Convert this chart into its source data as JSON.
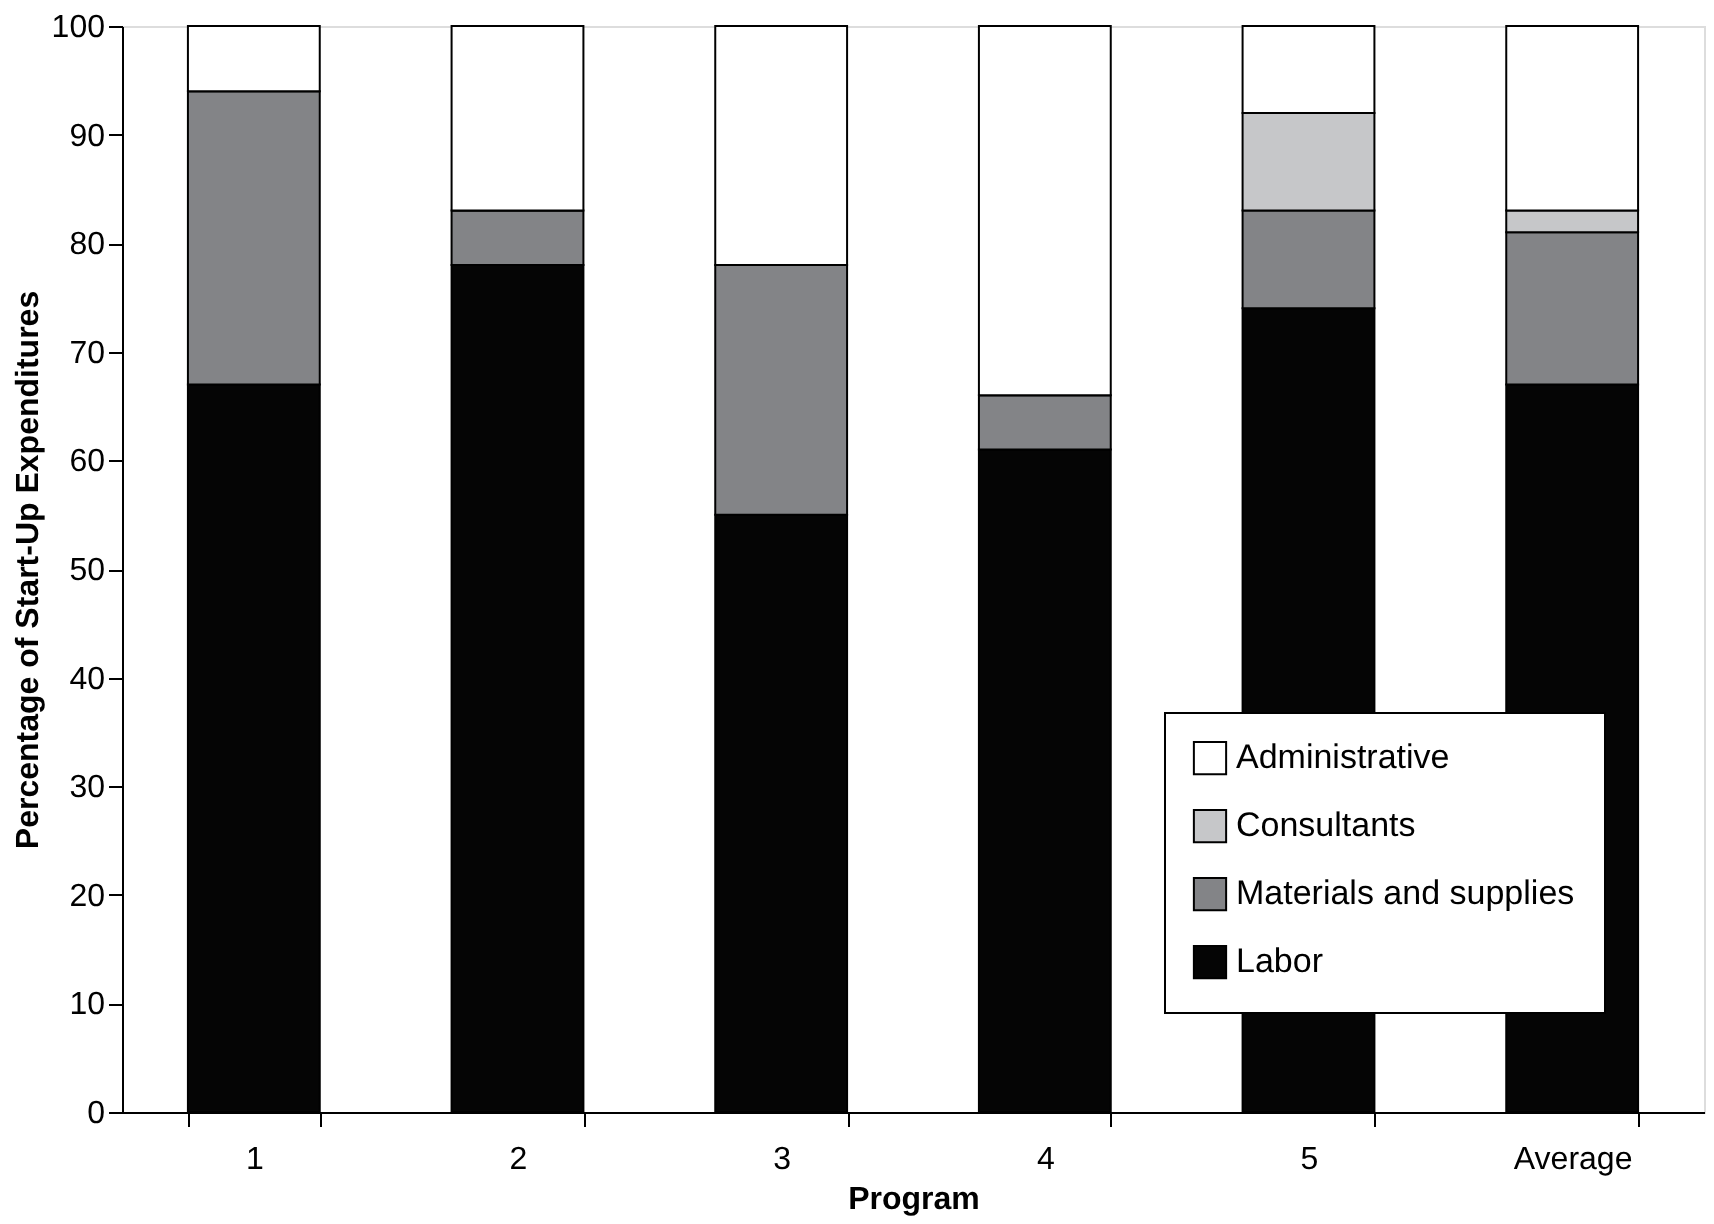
{
  "chart_data": {
    "type": "bar",
    "stacked": true,
    "xlabel": "Program",
    "ylabel": "Percentage of Start-Up Expenditures",
    "categories": [
      "1",
      "2",
      "3",
      "4",
      "5",
      "Average"
    ],
    "series": [
      {
        "name": "Labor",
        "color": "#050505",
        "values": [
          67,
          78,
          55,
          61,
          74,
          67
        ]
      },
      {
        "name": "Materials and supplies",
        "color": "#838487",
        "values": [
          27,
          5,
          23,
          5,
          9,
          14
        ]
      },
      {
        "name": "Consultants",
        "color": "#c6c7c9",
        "values": [
          0,
          0,
          0,
          0,
          9,
          2
        ]
      },
      {
        "name": "Administrative",
        "color": "#ffffff",
        "values": [
          6,
          17,
          22,
          34,
          8,
          17
        ]
      }
    ],
    "ylim": [
      0,
      100
    ],
    "yticks": [
      0,
      10,
      20,
      30,
      40,
      50,
      60,
      70,
      80,
      90,
      100
    ],
    "grid": false,
    "legend": "bottom right"
  }
}
